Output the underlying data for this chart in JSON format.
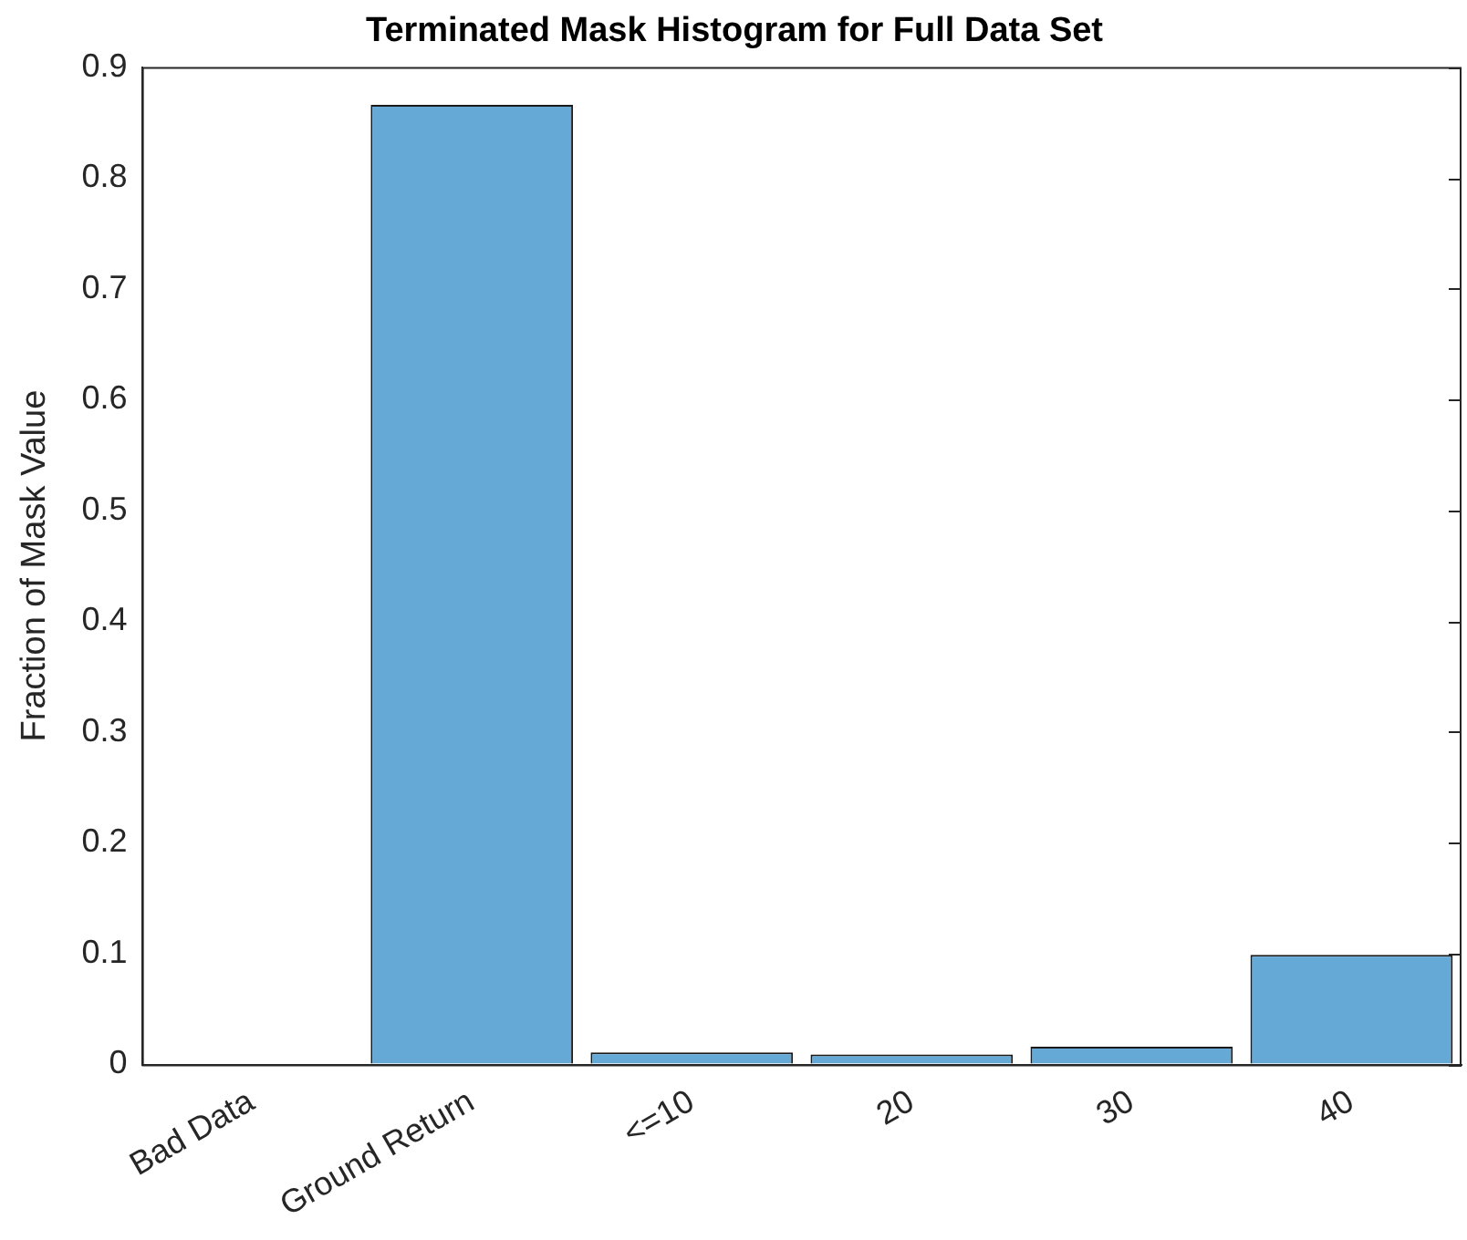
{
  "chart_data": {
    "type": "bar",
    "title": "Terminated Mask Histogram for Full Data Set",
    "ylabel": "Fraction of Mask Value",
    "categories": [
      "Bad Data",
      "Ground Return",
      "<=10",
      "20",
      "30",
      "40"
    ],
    "values": [
      0,
      0.866,
      0.011,
      0.009,
      0.016,
      0.099
    ],
    "color": "#65a9d7",
    "ylim": [
      0,
      0.9
    ],
    "yticks": [
      0,
      0.1,
      0.2,
      0.3,
      0.4,
      0.5,
      0.6,
      0.7,
      0.8,
      0.9
    ],
    "grid": false,
    "legend": false
  }
}
